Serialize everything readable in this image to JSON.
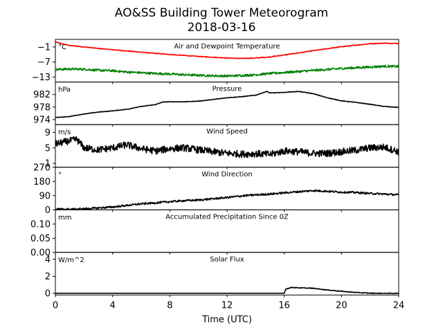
{
  "title_line1": "AO&SS Building Tower Meteorogram",
  "title_line2": "2018-03-16",
  "chart_data": {
    "type": "line",
    "xlabel": "Time (UTC)",
    "xlim": [
      0,
      24
    ],
    "xticks": [
      0,
      4,
      8,
      12,
      16,
      20,
      24
    ],
    "panels": [
      {
        "id": "temperature",
        "title": "Air and Dewpoint Temperature",
        "unit": "°C",
        "ylim": [
          -15,
          2
        ],
        "yticks": [
          -13,
          -7,
          -1
        ],
        "ytick_labels": [
          "−13",
          "−7",
          "−1"
        ],
        "series": [
          {
            "color": "#ff0000",
            "noise": 0.15,
            "points": [
              [
                0,
                1.0
              ],
              [
                0.5,
                0.2
              ],
              [
                1,
                -0.4
              ],
              [
                2,
                -1.0
              ],
              [
                3,
                -1.6
              ],
              [
                4,
                -2.1
              ],
              [
                5,
                -2.6
              ],
              [
                6,
                -3.1
              ],
              [
                7,
                -3.6
              ],
              [
                8,
                -4.0
              ],
              [
                9,
                -4.4
              ],
              [
                10,
                -4.8
              ],
              [
                11,
                -5.1
              ],
              [
                12,
                -5.4
              ],
              [
                13,
                -5.6
              ],
              [
                14,
                -5.4
              ],
              [
                15,
                -5.0
              ],
              [
                16,
                -4.2
              ],
              [
                17,
                -3.4
              ],
              [
                18,
                -2.5
              ],
              [
                19,
                -1.7
              ],
              [
                20,
                -0.9
              ],
              [
                21,
                -0.3
              ],
              [
                22,
                0.3
              ],
              [
                23,
                0.5
              ],
              [
                24,
                0.4
              ]
            ]
          },
          {
            "color": "#008000",
            "noise": 0.45,
            "points": [
              [
                0,
                -10.0
              ],
              [
                1,
                -9.8
              ],
              [
                2,
                -9.9
              ],
              [
                3,
                -10.3
              ],
              [
                4,
                -10.5
              ],
              [
                5,
                -11.0
              ],
              [
                6,
                -11.3
              ],
              [
                7,
                -11.6
              ],
              [
                8,
                -11.8
              ],
              [
                9,
                -12.1
              ],
              [
                10,
                -12.3
              ],
              [
                11,
                -12.5
              ],
              [
                12,
                -12.6
              ],
              [
                13,
                -12.4
              ],
              [
                14,
                -12.1
              ],
              [
                15,
                -11.6
              ],
              [
                16,
                -11.2
              ],
              [
                17,
                -10.8
              ],
              [
                18,
                -10.4
              ],
              [
                19,
                -10.0
              ],
              [
                20,
                -9.6
              ],
              [
                21,
                -9.3
              ],
              [
                22,
                -9.0
              ],
              [
                23,
                -8.7
              ],
              [
                24,
                -8.8
              ]
            ]
          }
        ]
      },
      {
        "id": "pressure",
        "title": "Pressure",
        "unit": "hPa",
        "ylim": [
          972.4,
          986
        ],
        "yticks": [
          974,
          978,
          982
        ],
        "ytick_labels": [
          "974",
          "978",
          "982"
        ],
        "series": [
          {
            "color": "#000000",
            "noise": 0.08,
            "points": [
              [
                0,
                974.7
              ],
              [
                0.5,
                974.8
              ],
              [
                1,
                975.0
              ],
              [
                2,
                975.8
              ],
              [
                3,
                976.4
              ],
              [
                4,
                976.8
              ],
              [
                5,
                977.3
              ],
              [
                6,
                978.2
              ],
              [
                7,
                978.8
              ],
              [
                7.5,
                979.6
              ],
              [
                8,
                979.7
              ],
              [
                9,
                979.7
              ],
              [
                10,
                979.9
              ],
              [
                11,
                980.4
              ],
              [
                12,
                981.0
              ],
              [
                13,
                981.3
              ],
              [
                14,
                981.8
              ],
              [
                14.8,
                983.0
              ],
              [
                15,
                982.5
              ],
              [
                16,
                982.7
              ],
              [
                17,
                983.0
              ],
              [
                18,
                982.3
              ],
              [
                19,
                981.0
              ],
              [
                20,
                980.0
              ],
              [
                21,
                979.5
              ],
              [
                22,
                978.9
              ],
              [
                23,
                978.2
              ],
              [
                24,
                977.9
              ]
            ]
          }
        ]
      },
      {
        "id": "wind_speed",
        "title": "Wind Speed",
        "unit": "m/s",
        "ylim": [
          0,
          11
        ],
        "yticks": [
          1,
          5,
          9
        ],
        "ytick_labels": [
          "1",
          "5",
          "9"
        ],
        "series": [
          {
            "color": "#000000",
            "noise": 0.9,
            "points": [
              [
                0,
                6.0
              ],
              [
                1,
                6.8
              ],
              [
                1.5,
                7.2
              ],
              [
                2,
                5.0
              ],
              [
                3,
                4.5
              ],
              [
                4,
                5.0
              ],
              [
                5,
                5.8
              ],
              [
                6,
                4.8
              ],
              [
                7,
                4.2
              ],
              [
                8,
                4.8
              ],
              [
                9,
                5.0
              ],
              [
                10,
                4.5
              ],
              [
                11,
                4.0
              ],
              [
                12,
                3.6
              ],
              [
                13,
                3.4
              ],
              [
                14,
                3.5
              ],
              [
                15,
                3.3
              ],
              [
                16,
                4.2
              ],
              [
                17,
                4.0
              ],
              [
                18,
                3.6
              ],
              [
                19,
                3.6
              ],
              [
                20,
                4.0
              ],
              [
                21,
                4.4
              ],
              [
                22,
                5.0
              ],
              [
                23,
                5.2
              ],
              [
                24,
                4.0
              ]
            ]
          }
        ]
      },
      {
        "id": "wind_direction",
        "title": "Wind Direction",
        "unit": "°",
        "ylim": [
          0,
          270
        ],
        "yticks": [
          0,
          90,
          180,
          270
        ],
        "ytick_labels": [
          "0",
          "90",
          "180",
          "270"
        ],
        "series": [
          {
            "color": "#000000",
            "noise": 6,
            "points": [
              [
                0,
                5
              ],
              [
                1,
                4
              ],
              [
                2,
                6
              ],
              [
                3,
                12
              ],
              [
                4,
                18
              ],
              [
                5,
                28
              ],
              [
                6,
                38
              ],
              [
                7,
                44
              ],
              [
                8,
                52
              ],
              [
                9,
                58
              ],
              [
                10,
                62
              ],
              [
                11,
                70
              ],
              [
                12,
                78
              ],
              [
                13,
                88
              ],
              [
                14,
                95
              ],
              [
                15,
                100
              ],
              [
                16,
                108
              ],
              [
                17,
                115
              ],
              [
                18,
                122
              ],
              [
                19,
                118
              ],
              [
                20,
                112
              ],
              [
                21,
                110
              ],
              [
                22,
                104
              ],
              [
                23,
                100
              ],
              [
                24,
                95
              ]
            ]
          }
        ]
      },
      {
        "id": "precipitation",
        "title": "Accumulated Precipitation Since 0Z",
        "unit": "mm",
        "ylim": [
          0,
          0.15
        ],
        "yticks": [
          0.0,
          0.05,
          0.1
        ],
        "ytick_labels": [
          "0.00",
          "0.05",
          "0.10"
        ],
        "series": [
          {
            "color": "#000000",
            "noise": 0,
            "points": [
              [
                0,
                0
              ],
              [
                24,
                0
              ]
            ]
          }
        ]
      },
      {
        "id": "solar_flux",
        "title": "Solar Flux",
        "unit": "W/m^2",
        "ylim": [
          -0.2,
          4.8
        ],
        "yticks": [
          0,
          2,
          4
        ],
        "ytick_labels": [
          "0",
          "2",
          "4"
        ],
        "series": [
          {
            "color": "#000000",
            "noise": 0.04,
            "points": [
              [
                0,
                0
              ],
              [
                16,
                0
              ],
              [
                16.1,
                0.5
              ],
              [
                16.5,
                0.7
              ],
              [
                17,
                0.65
              ],
              [
                18,
                0.6
              ],
              [
                19,
                0.4
              ],
              [
                20,
                0.25
              ],
              [
                21,
                0.1
              ],
              [
                22,
                0.02
              ],
              [
                23,
                0
              ],
              [
                24,
                0
              ]
            ]
          }
        ]
      }
    ]
  }
}
